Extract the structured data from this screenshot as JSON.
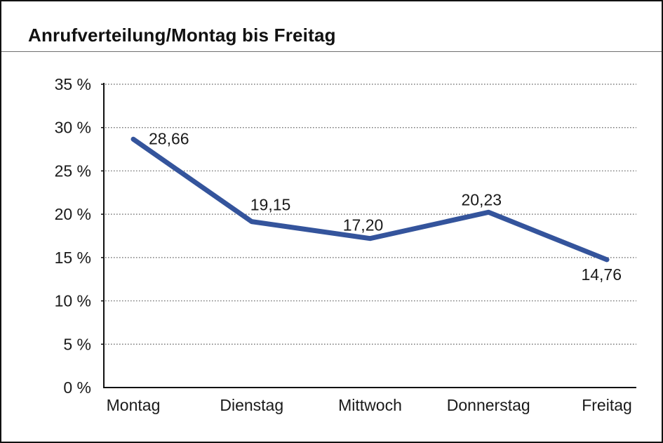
{
  "window": {
    "background": "#ffffff",
    "border_color": "#111111"
  },
  "header": {
    "title": "Anrufverteilung/Montag bis Freitag"
  },
  "chart_data": {
    "type": "line",
    "title": "Anrufverteilung/Montag bis Freitag",
    "categories": [
      "Montag",
      "Dienstag",
      "Mittwoch",
      "Donnerstag",
      "Freitag"
    ],
    "series": [
      {
        "name": "Anrufverteilung",
        "values": [
          28.66,
          19.15,
          17.2,
          20.23,
          14.76
        ],
        "point_labels": [
          "28,66",
          "19,15",
          "17,20",
          "20,23",
          "14,76"
        ],
        "color": "#34549C"
      }
    ],
    "xlabel": "",
    "ylabel": "",
    "ylim": [
      0,
      35
    ],
    "y_tick_step": 5,
    "y_tick_labels": [
      "0 %",
      "5 %",
      "10 %",
      "15 %",
      "20 %",
      "25 %",
      "30 %",
      "35 %"
    ],
    "grid": "horizontal-dotted",
    "grid_color": "#666666",
    "axis_color": "#111111",
    "text_color": "#1a1a1a",
    "legend": "none"
  }
}
